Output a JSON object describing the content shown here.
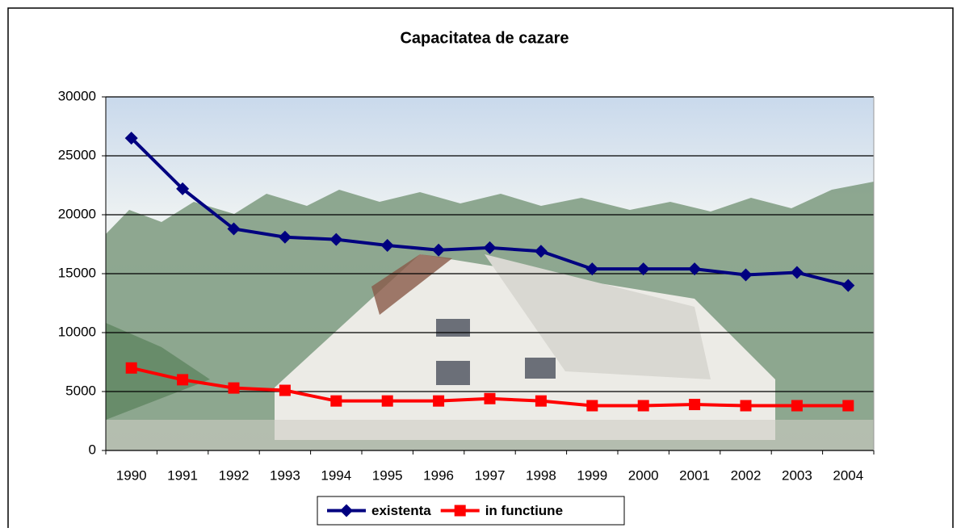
{
  "chart_data": {
    "type": "line",
    "title": "Capacitatea de cazare",
    "categories": [
      "1990",
      "1991",
      "1992",
      "1993",
      "1994",
      "1995",
      "1996",
      "1997",
      "1998",
      "1999",
      "2000",
      "2001",
      "2002",
      "2003",
      "2004"
    ],
    "series": [
      {
        "name": "existenta",
        "color": "#000080",
        "marker": "diamond",
        "values": [
          26500,
          22200,
          18800,
          18100,
          17900,
          17400,
          17000,
          17200,
          16900,
          15400,
          15400,
          15400,
          14900,
          15100,
          14000
        ]
      },
      {
        "name": "in functiune",
        "color": "#ff0000",
        "marker": "square",
        "values": [
          7000,
          6000,
          5300,
          5100,
          4200,
          4200,
          4200,
          4400,
          4200,
          3800,
          3800,
          3900,
          3800,
          3800,
          3800
        ]
      }
    ],
    "ylim": [
      0,
      30000
    ],
    "yticks": [
      0,
      5000,
      10000,
      15000,
      20000,
      25000,
      30000
    ],
    "grid": true,
    "legend": "bottom"
  }
}
